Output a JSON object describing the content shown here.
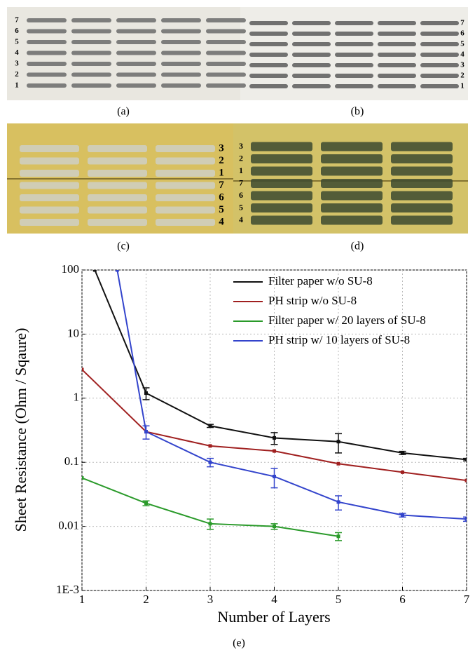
{
  "figure": {
    "panels": [
      {
        "label": "(a)",
        "row_labels": [
          "7",
          "6",
          "5",
          "4",
          "3",
          "2",
          "1"
        ]
      },
      {
        "label": "(b)",
        "row_labels": [
          "7",
          "6",
          "5",
          "4",
          "3",
          "2",
          "1"
        ]
      },
      {
        "label": "(c)",
        "row_labels": [
          "3",
          "2",
          "1",
          "7",
          "6",
          "5",
          "4"
        ]
      },
      {
        "label": "(d)",
        "row_labels": [
          "3",
          "2",
          "1",
          "7",
          "6",
          "5",
          "4"
        ]
      },
      {
        "label": "(e)"
      }
    ]
  },
  "chart_data": {
    "type": "line",
    "x_label": "Number of Layers",
    "y_label": "Sheet Resistance (Ohm / Sqaure)",
    "xlim": [
      1,
      7
    ],
    "xticks": [
      1,
      2,
      3,
      4,
      5,
      6,
      7
    ],
    "ylim": [
      0.001,
      100
    ],
    "log_y": true,
    "yticks": [
      {
        "value": 0.001,
        "label": "1E-3"
      },
      0.01,
      0.1,
      1,
      10,
      100
    ],
    "grid": true,
    "legend": "top-right",
    "series": [
      {
        "name": "Filter paper w/o SU-8",
        "color": "#111111",
        "x": [
          1.2,
          2,
          3,
          4,
          5,
          6,
          7
        ],
        "values": [
          100,
          1.2,
          0.37,
          0.24,
          0.21,
          0.14,
          0.11
        ],
        "errors": [
          null,
          0.25,
          0.02,
          0.05,
          0.07,
          0.008,
          0.005
        ]
      },
      {
        "name": "PH strip w/o SU-8",
        "color": "#a02020",
        "x": [
          1,
          2,
          3,
          4,
          5,
          6,
          7
        ],
        "values": [
          2.8,
          0.3,
          0.18,
          0.15,
          0.095,
          0.07,
          0.052
        ],
        "errors": [
          null,
          null,
          null,
          null,
          null,
          null,
          null
        ]
      },
      {
        "name": "Filter paper w/ 20 layers of SU-8",
        "color": "#2a9a2a",
        "x": [
          1,
          2,
          3,
          4,
          5
        ],
        "values": [
          0.057,
          0.023,
          0.011,
          0.01,
          0.007
        ],
        "errors": [
          null,
          0.002,
          0.002,
          0.001,
          0.001
        ]
      },
      {
        "name": "PH strip w/ 10 layers of SU-8",
        "color": "#3344cc",
        "x": [
          1.55,
          2,
          3,
          4,
          5,
          6,
          7
        ],
        "values": [
          100,
          0.3,
          0.1,
          0.06,
          0.024,
          0.015,
          0.013
        ],
        "errors": [
          null,
          0.07,
          0.015,
          0.02,
          0.006,
          0.001,
          0.001
        ]
      }
    ]
  }
}
